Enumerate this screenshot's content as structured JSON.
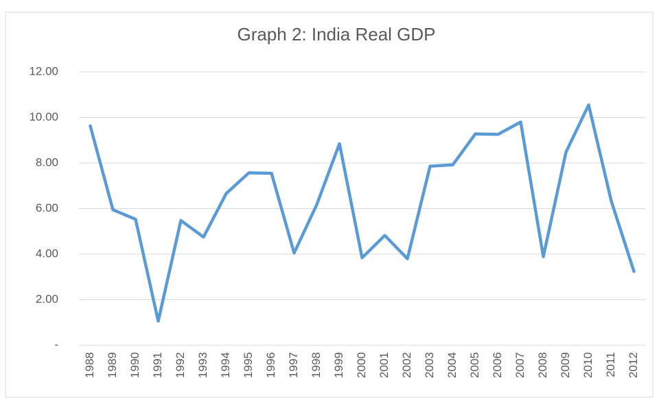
{
  "chart_data": {
    "type": "line",
    "title": "Graph 2: India Real GDP",
    "categories": [
      "1988",
      "1989",
      "1990",
      "1991",
      "1992",
      "1993",
      "1994",
      "1995",
      "1996",
      "1997",
      "1998",
      "1999",
      "2000",
      "2001",
      "2002",
      "2003",
      "2004",
      "2005",
      "2006",
      "2007",
      "2008",
      "2009",
      "2010",
      "2011",
      "2012"
    ],
    "series": [
      {
        "color": "#5b9bd5",
        "values": [
          9.63,
          5.95,
          5.53,
          1.06,
          5.48,
          4.75,
          6.66,
          7.57,
          7.55,
          4.05,
          6.18,
          8.85,
          3.84,
          4.82,
          3.8,
          7.86,
          7.92,
          9.28,
          9.26,
          9.8,
          3.89,
          8.48,
          10.55,
          6.33,
          3.24
        ]
      }
    ],
    "ylim": [
      0,
      12
    ],
    "yticks": [
      {
        "value": 0,
        "label": "-"
      },
      {
        "value": 2,
        "label": "2.00"
      },
      {
        "value": 4,
        "label": "4.00"
      },
      {
        "value": 6,
        "label": "6.00"
      },
      {
        "value": 8,
        "label": "8.00"
      },
      {
        "value": 10,
        "label": "10.00"
      },
      {
        "value": 12,
        "label": "12.00"
      }
    ],
    "grid": true
  }
}
